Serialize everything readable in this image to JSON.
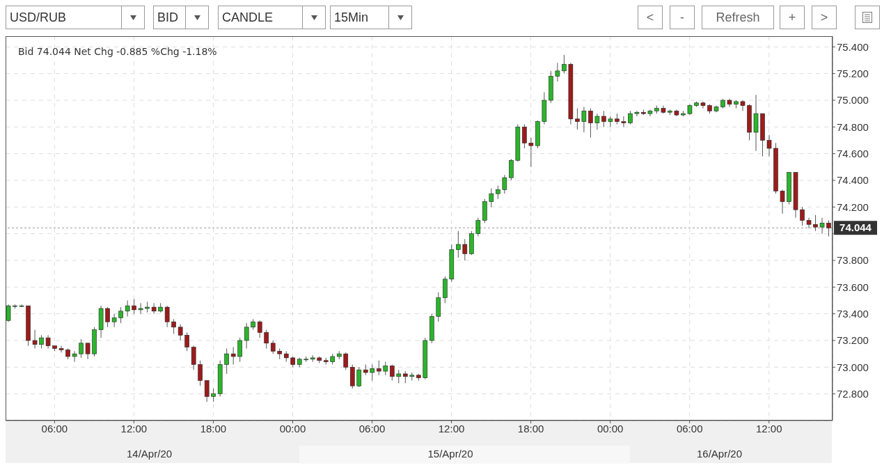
{
  "chart_data": {
    "type": "candlestick",
    "title": "Bid 74.044 Net Chg -0.885 %Chg -1.18%",
    "annotations": [
      "USD/RUB",
      "BID",
      "CANDLE",
      "15Min",
      "<",
      "-",
      "Refresh",
      "+",
      ">"
    ],
    "x": [
      "--04-14T02:30",
      "--04-14T03:00",
      "--04-14T03:30",
      "--04-14T04:00",
      "--04-14T04:30",
      "--04-14T05:00",
      "--04-14T05:30",
      "--04-14T06:00",
      "--04-14T06:30",
      "--04-14T07:00",
      "--04-14T07:30",
      "--04-14T08:00",
      "--04-14T08:30",
      "--04-14T09:00",
      "--04-14T09:30",
      "--04-14T10:00",
      "--04-14T10:30",
      "--04-14T11:00",
      "--04-14T11:30",
      "--04-14T12:00",
      "--04-14T12:30",
      "--04-14T13:00",
      "--04-14T13:30",
      "--04-14T14:00",
      "--04-14T14:30",
      "--04-14T15:00",
      "--04-14T15:30",
      "--04-14T16:00",
      "--04-14T16:30",
      "--04-14T17:00",
      "--04-14T17:30",
      "--04-14T18:00",
      "--04-14T18:30",
      "--04-14T19:00",
      "--04-14T19:30",
      "--04-14T20:00",
      "--04-14T20:30",
      "--04-14T21:00",
      "--04-14T21:30",
      "--04-14T22:00",
      "--04-14T22:30",
      "--04-14T23:00",
      "--04-14T23:30",
      "--04-15T00:00",
      "--04-15T00:30",
      "--04-15T01:00",
      "--04-15T01:30",
      "--04-15T02:00",
      "--04-15T02:30",
      "--04-15T03:00",
      "--04-15T03:30",
      "--04-15T04:00",
      "--04-15T04:30",
      "--04-15T05:00",
      "--04-15T05:30",
      "--04-15T06:00",
      "--04-15T06:30",
      "--04-15T07:00",
      "--04-15T07:30",
      "--04-15T08:00",
      "--04-15T08:30",
      "--04-15T09:00",
      "--04-15T09:30",
      "--04-15T10:00",
      "--04-15T10:30",
      "--04-15T11:00",
      "--04-15T11:30",
      "--04-15T12:00",
      "--04-15T12:30",
      "--04-15T13:00",
      "--04-15T13:30",
      "--04-15T14:00",
      "--04-15T14:30",
      "--04-15T15:00",
      "--04-15T15:30",
      "--04-15T16:00",
      "--04-15T16:30",
      "--04-15T17:00",
      "--04-15T17:30",
      "--04-15T18:00",
      "--04-15T18:30",
      "--04-15T19:00",
      "--04-15T19:30",
      "--04-15T20:00",
      "--04-15T20:30",
      "--04-15T21:00",
      "--04-15T21:30",
      "--04-15T22:00",
      "--04-15T22:30",
      "--04-15T23:00",
      "--04-15T23:30",
      "--04-16T00:00",
      "--04-16T00:30",
      "--04-16T01:00",
      "--04-16T01:30",
      "--04-16T02:00",
      "--04-16T02:30",
      "--04-16T03:00",
      "--04-16T03:30",
      "--04-16T04:00",
      "--04-16T04:30",
      "--04-16T05:00",
      "--04-16T05:30",
      "--04-16T06:00",
      "--04-16T06:30",
      "--04-16T07:00",
      "--04-16T07:30",
      "--04-16T08:00",
      "--04-16T08:30",
      "--04-16T09:00",
      "--04-16T09:30",
      "--04-16T10:00",
      "--04-16T10:30",
      "--04-16T11:00",
      "--04-16T11:30",
      "--04-16T12:00",
      "--04-16T12:30",
      "--04-16T13:00",
      "--04-16T13:30",
      "--04-16T14:00",
      "--04-16T14:30",
      "--04-16T15:00",
      "--04-16T15:30",
      "--04-16T16:00",
      "--04-16T16:30"
    ],
    "colors": [
      "#2bb52b",
      "#2bb52b",
      "#2bb52b",
      "#9c1c1c",
      "#9c1c1c",
      "#2bb52b",
      "#9c1c1c",
      "#9c1c1c",
      "#9c1c1c",
      "#9c1c1c",
      "#2bb52b",
      "#2bb52b",
      "#9c1c1c",
      "#2bb52b",
      "#2bb52b",
      "#9c1c1c",
      "#2bb52b",
      "#2bb52b",
      "#2bb52b",
      "#9c1c1c",
      "#2bb52b",
      "#2bb52b",
      "#9c1c1c",
      "#2bb52b",
      "#9c1c1c",
      "#9c1c1c",
      "#9c1c1c",
      "#9c1c1c",
      "#9c1c1c",
      "#9c1c1c",
      "#9c1c1c",
      "#2bb52b",
      "#2bb52b",
      "#2bb52b",
      "#9c1c1c",
      "#2bb52b",
      "#2bb52b",
      "#2bb52b",
      "#9c1c1c",
      "#9c1c1c",
      "#9c1c1c",
      "#9c1c1c",
      "#9c1c1c",
      "#9c1c1c",
      "#2bb52b",
      "#2bb52b",
      "#2bb52b",
      "#9c1c1c",
      "#9c1c1c",
      "#2bb52b",
      "#2bb52b",
      "#9c1c1c",
      "#9c1c1c",
      "#2bb52b",
      "#9c1c1c",
      "#2bb52b",
      "#9c1c1c",
      "#2bb52b",
      "#9c1c1c",
      "#2bb52b",
      "#9c1c1c",
      "#2bb52b",
      "#9c1c1c",
      "#2bb52b",
      "#2bb52b",
      "#2bb52b",
      "#2bb52b",
      "#2bb52b",
      "#2bb52b",
      "#9c1c1c",
      "#2bb52b",
      "#2bb52b",
      "#2bb52b",
      "#2bb52b",
      "#2bb52b",
      "#2bb52b",
      "#2bb52b",
      "#2bb52b",
      "#9c1c1c",
      "#9c1c1c",
      "#2bb52b",
      "#2bb52b",
      "#2bb52b",
      "#2bb52b",
      "#2bb52b",
      "#9c1c1c",
      "#9c1c1c",
      "#2bb52b",
      "#9c1c1c",
      "#2bb52b",
      "#9c1c1c",
      "#2bb52b",
      "#9c1c1c",
      "#9c1c1c",
      "#2bb52b",
      "#2bb52b",
      "#9c1c1c",
      "#2bb52b",
      "#2bb52b",
      "#9c1c1c",
      "#2bb52b",
      "#9c1c1c",
      "#2bb52b",
      "#2bb52b",
      "#2bb52b",
      "#9c1c1c",
      "#9c1c1c",
      "#2bb52b",
      "#2bb52b",
      "#9c1c1c",
      "#2bb52b",
      "#9c1c1c",
      "#9c1c1c",
      "#2bb52b",
      "#9c1c1c",
      "#9c1c1c",
      "#9c1c1c",
      "#9c1c1c",
      "#2bb52b",
      "#9c1c1c",
      "#9c1c1c",
      "#9c1c1c",
      "#9c1c1c",
      "#2bb52b",
      "#9c1c1c"
    ],
    "ohlc": [
      [
        73.35,
        73.47,
        73.34,
        73.46
      ],
      [
        73.46,
        73.47,
        73.44,
        73.46
      ],
      [
        73.46,
        73.47,
        73.45,
        73.46
      ],
      [
        73.46,
        73.46,
        73.16,
        73.2
      ],
      [
        73.2,
        73.28,
        73.14,
        73.17
      ],
      [
        73.17,
        73.24,
        73.14,
        73.22
      ],
      [
        73.22,
        73.24,
        73.14,
        73.16
      ],
      [
        73.16,
        73.16,
        73.12,
        73.14
      ],
      [
        73.14,
        73.16,
        73.11,
        73.13
      ],
      [
        73.13,
        73.14,
        73.06,
        73.08
      ],
      [
        73.08,
        73.12,
        73.04,
        73.1
      ],
      [
        73.1,
        73.21,
        73.07,
        73.18
      ],
      [
        73.18,
        73.18,
        73.06,
        73.1
      ],
      [
        73.1,
        73.3,
        73.08,
        73.28
      ],
      [
        73.28,
        73.46,
        73.22,
        73.44
      ],
      [
        73.44,
        73.45,
        73.3,
        73.34
      ],
      [
        73.34,
        73.4,
        73.3,
        73.37
      ],
      [
        73.37,
        73.45,
        73.33,
        73.42
      ],
      [
        73.42,
        73.5,
        73.38,
        73.46
      ],
      [
        73.46,
        73.51,
        73.4,
        73.43
      ],
      [
        73.43,
        73.48,
        73.4,
        73.44
      ],
      [
        73.44,
        73.49,
        73.41,
        73.45
      ],
      [
        73.45,
        73.48,
        73.4,
        73.42
      ],
      [
        73.42,
        73.48,
        73.41,
        73.45
      ],
      [
        73.45,
        73.46,
        73.3,
        73.34
      ],
      [
        73.34,
        73.36,
        73.25,
        73.3
      ],
      [
        73.3,
        73.32,
        73.2,
        73.24
      ],
      [
        73.24,
        73.26,
        73.12,
        73.15
      ],
      [
        73.15,
        73.16,
        72.98,
        73.02
      ],
      [
        73.02,
        73.05,
        72.86,
        72.9
      ],
      [
        72.9,
        72.9,
        72.74,
        72.78
      ],
      [
        72.78,
        72.84,
        72.74,
        72.8
      ],
      [
        72.8,
        73.05,
        72.78,
        73.02
      ],
      [
        73.02,
        73.14,
        72.95,
        73.1
      ],
      [
        73.1,
        73.15,
        73.02,
        73.08
      ],
      [
        73.08,
        73.22,
        73.04,
        73.2
      ],
      [
        73.2,
        73.33,
        73.14,
        73.3
      ],
      [
        73.3,
        73.36,
        73.28,
        73.34
      ],
      [
        73.34,
        73.35,
        73.22,
        73.26
      ],
      [
        73.26,
        73.28,
        73.14,
        73.18
      ],
      [
        73.18,
        73.2,
        73.1,
        73.12
      ],
      [
        73.12,
        73.14,
        73.06,
        73.1
      ],
      [
        73.1,
        73.12,
        73.04,
        73.07
      ],
      [
        73.07,
        73.08,
        73,
        73.02
      ],
      [
        73.02,
        73.07,
        73,
        73.06
      ],
      [
        73.06,
        73.08,
        73.04,
        73.06
      ],
      [
        73.06,
        73.09,
        73.04,
        73.07
      ],
      [
        73.07,
        73.08,
        73.03,
        73.05
      ],
      [
        73.05,
        73.07,
        73.02,
        73.04
      ],
      [
        73.04,
        73.1,
        73.02,
        73.08
      ],
      [
        73.08,
        73.12,
        73.06,
        73.1
      ],
      [
        73.1,
        73.11,
        72.98,
        73
      ],
      [
        73,
        73.02,
        72.84,
        72.86
      ],
      [
        72.86,
        73,
        72.85,
        72.98
      ],
      [
        72.98,
        73.02,
        72.94,
        72.96
      ],
      [
        72.96,
        73.02,
        72.9,
        72.99
      ],
      [
        72.99,
        73.05,
        72.94,
        72.97
      ],
      [
        72.97,
        73.04,
        72.94,
        73.01
      ],
      [
        73.01,
        73.02,
        72.9,
        72.93
      ],
      [
        72.93,
        72.98,
        72.88,
        72.95
      ],
      [
        72.95,
        72.97,
        72.88,
        72.93
      ],
      [
        72.93,
        72.96,
        72.9,
        72.94
      ],
      [
        72.94,
        72.95,
        72.9,
        72.92
      ],
      [
        72.92,
        73.22,
        72.91,
        73.2
      ],
      [
        73.2,
        73.4,
        73.18,
        73.38
      ],
      [
        73.38,
        73.56,
        73.34,
        73.52
      ],
      [
        73.52,
        73.68,
        73.48,
        73.66
      ],
      [
        73.66,
        73.92,
        73.64,
        73.88
      ],
      [
        73.88,
        74.02,
        73.82,
        73.92
      ],
      [
        73.92,
        73.96,
        73.8,
        73.85
      ],
      [
        73.85,
        74.02,
        73.84,
        74
      ],
      [
        74,
        74.12,
        73.98,
        74.1
      ],
      [
        74.1,
        74.26,
        74.08,
        74.24
      ],
      [
        74.24,
        74.34,
        74.2,
        74.3
      ],
      [
        74.3,
        74.36,
        74.26,
        74.33
      ],
      [
        74.33,
        74.44,
        74.3,
        74.42
      ],
      [
        74.42,
        74.56,
        74.4,
        74.55
      ],
      [
        74.55,
        74.82,
        74.54,
        74.8
      ],
      [
        74.8,
        74.82,
        74.64,
        74.68
      ],
      [
        74.68,
        74.72,
        74.5,
        74.66
      ],
      [
        74.66,
        74.85,
        74.64,
        74.84
      ],
      [
        74.84,
        75.06,
        74.82,
        75
      ],
      [
        75,
        75.22,
        74.98,
        75.18
      ],
      [
        75.18,
        75.28,
        75.14,
        75.22
      ],
      [
        75.22,
        75.34,
        75.2,
        75.27
      ],
      [
        75.27,
        75.28,
        74.82,
        74.86
      ],
      [
        74.86,
        74.94,
        74.78,
        74.84
      ],
      [
        74.84,
        74.95,
        74.76,
        74.92
      ],
      [
        74.92,
        74.94,
        74.72,
        74.83
      ],
      [
        74.83,
        74.9,
        74.78,
        74.88
      ],
      [
        74.88,
        74.92,
        74.8,
        74.84
      ],
      [
        74.84,
        74.88,
        74.8,
        74.86
      ],
      [
        74.86,
        74.9,
        74.82,
        74.84
      ],
      [
        74.84,
        74.88,
        74.8,
        74.83
      ],
      [
        74.83,
        74.92,
        74.82,
        74.9
      ],
      [
        74.9,
        74.92,
        74.88,
        74.91
      ],
      [
        74.91,
        74.93,
        74.89,
        74.9
      ],
      [
        74.9,
        74.93,
        74.88,
        74.92
      ],
      [
        74.92,
        74.96,
        74.9,
        74.94
      ],
      [
        74.94,
        74.96,
        74.9,
        74.91
      ],
      [
        74.91,
        74.93,
        74.89,
        74.92
      ],
      [
        74.92,
        74.93,
        74.88,
        74.89
      ],
      [
        74.89,
        74.92,
        74.88,
        74.9
      ],
      [
        74.9,
        74.97,
        74.89,
        74.96
      ],
      [
        74.96,
        74.99,
        74.95,
        74.98
      ],
      [
        74.98,
        74.99,
        74.94,
        74.96
      ],
      [
        74.96,
        74.97,
        74.9,
        74.92
      ],
      [
        74.92,
        74.96,
        74.91,
        74.95
      ],
      [
        74.95,
        75.01,
        74.94,
        75
      ],
      [
        75,
        75.01,
        74.95,
        74.97
      ],
      [
        74.97,
        75,
        74.94,
        74.99
      ],
      [
        74.99,
        75,
        74.92,
        74.96
      ],
      [
        74.96,
        74.97,
        74.7,
        74.76
      ],
      [
        74.76,
        75.04,
        74.62,
        74.9
      ],
      [
        74.9,
        74.9,
        74.58,
        74.7
      ],
      [
        74.7,
        74.74,
        74.58,
        74.64
      ],
      [
        74.64,
        74.68,
        74.3,
        74.32
      ],
      [
        74.32,
        74.33,
        74.15,
        74.24
      ],
      [
        74.24,
        74.46,
        74.22,
        74.46
      ],
      [
        74.46,
        74.46,
        74.12,
        74.18
      ],
      [
        74.18,
        74.2,
        74.06,
        74.1
      ],
      [
        74.1,
        74.12,
        74.04,
        74.07
      ],
      [
        74.07,
        74.14,
        74.02,
        74.05
      ],
      [
        74.05,
        74.12,
        74,
        74.08
      ],
      [
        74.08,
        74.1,
        73.98,
        74.044
      ]
    ],
    "xlim": [
      "--04-14T02:18",
      "--04-16T16:48"
    ],
    "xticks": [
      {
        "value": "--04-14T06:00",
        "label": "06:00"
      },
      {
        "value": "--04-14T12:00",
        "label": "12:00"
      },
      {
        "value": "--04-14T18:00",
        "label": "18:00"
      },
      {
        "value": "--04-15T00:00",
        "label": "00:00"
      },
      {
        "value": "--04-15T06:00",
        "label": "06:00"
      },
      {
        "value": "--04-15T12:00",
        "label": "12:00"
      },
      {
        "value": "--04-15T18:00",
        "label": "18:00"
      },
      {
        "value": "--04-16T00:00",
        "label": "00:00"
      },
      {
        "value": "--04-16T06:00",
        "label": "06:00"
      },
      {
        "value": "--04-16T12:00",
        "label": "12:00"
      }
    ],
    "x2lim": [
      "--04-14T02:18",
      "--04-16T16:48"
    ],
    "x2ticks": [
      {
        "value": "--04-14T13:10",
        "label": "14/Apr/20"
      },
      {
        "value": "--04-15T11:55",
        "label": "15/Apr/20"
      },
      {
        "value": "--04-16T08:15",
        "label": "16/Apr/20"
      }
    ],
    "ylim": [
      72.6,
      75.48
    ],
    "yticks": [
      {
        "value": 72.8,
        "label": "72.800"
      },
      {
        "value": 73,
        "label": "73.000"
      },
      {
        "value": 73.2,
        "label": "73.200"
      },
      {
        "value": 73.4,
        "label": "73.400"
      },
      {
        "value": 73.6,
        "label": "73.600"
      },
      {
        "value": 73.8,
        "label": "73.800"
      },
      {
        "value": 74,
        "label": null
      },
      {
        "value": 74.2,
        "label": "74.200"
      },
      {
        "value": 74.4,
        "label": "74.400"
      },
      {
        "value": 74.6,
        "label": "74.600"
      },
      {
        "value": 74.8,
        "label": "74.800"
      },
      {
        "value": 75,
        "label": "75.000"
      },
      {
        "value": 75.2,
        "label": "75.200"
      },
      {
        "value": 75.4,
        "label": "75.400"
      }
    ],
    "ref_lines": [
      {
        "axis": "y",
        "value": 74.044,
        "label": "74.044",
        "color": "#333333"
      }
    ],
    "grid": true
  }
}
